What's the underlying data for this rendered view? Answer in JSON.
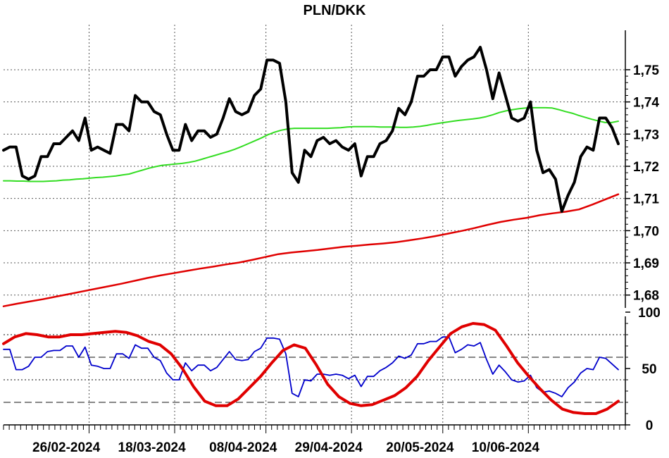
{
  "chart_data": [
    {
      "type": "line",
      "title": "PLN/DKK",
      "ylim": [
        1.676,
        1.764
      ],
      "yticks": [
        1.68,
        1.69,
        1.7,
        1.71,
        1.72,
        1.73,
        1.74,
        1.75
      ],
      "ytick_labels": [
        "1,68",
        "1,69",
        "1,70",
        "1,71",
        "1,72",
        "1,73",
        "1,74",
        "1,75"
      ],
      "grid": true,
      "n_points": 110,
      "series": [
        {
          "key": "price",
          "color": "#000000",
          "values": [
            1.725,
            1.726,
            1.726,
            1.717,
            1.716,
            1.717,
            1.723,
            1.723,
            1.727,
            1.727,
            1.729,
            1.731,
            1.728,
            1.735,
            1.725,
            1.726,
            1.725,
            1.724,
            1.733,
            1.733,
            1.731,
            1.742,
            1.74,
            1.74,
            1.737,
            1.736,
            1.73,
            1.725,
            1.725,
            1.733,
            1.728,
            1.731,
            1.731,
            1.729,
            1.73,
            1.735,
            1.741,
            1.737,
            1.736,
            1.737,
            1.742,
            1.744,
            1.753,
            1.753,
            1.752,
            1.74,
            1.718,
            1.715,
            1.725,
            1.723,
            1.728,
            1.729,
            1.727,
            1.728,
            1.726,
            1.725,
            1.727,
            1.717,
            1.723,
            1.723,
            1.727,
            1.728,
            1.731,
            1.738,
            1.736,
            1.74,
            1.748,
            1.748,
            1.75,
            1.75,
            1.754,
            1.754,
            1.748,
            1.751,
            1.753,
            1.754,
            1.757,
            1.75,
            1.741,
            1.749,
            1.742,
            1.735,
            1.734,
            1.735,
            1.74,
            1.725,
            1.718,
            1.719,
            1.716,
            1.706,
            1.711,
            1.715,
            1.723,
            1.726,
            1.725,
            1.735,
            1.735,
            1.732,
            1.727
          ]
        },
        {
          "key": "ma_medium",
          "color": "#33dd22",
          "values": [
            1.7155,
            1.7155,
            1.7154,
            1.7154,
            1.7153,
            1.7153,
            1.7153,
            1.7154,
            1.7155,
            1.7157,
            1.7158,
            1.716,
            1.7161,
            1.7163,
            1.7165,
            1.7166,
            1.7168,
            1.717,
            1.7173,
            1.7176,
            1.7182,
            1.7188,
            1.7194,
            1.7199,
            1.7203,
            1.7205,
            1.7207,
            1.7209,
            1.7212,
            1.7216,
            1.7222,
            1.7228,
            1.7234,
            1.724,
            1.7246,
            1.7253,
            1.7261,
            1.727,
            1.7279,
            1.7288,
            1.7298,
            1.7306,
            1.7312,
            1.7316,
            1.7318,
            1.7318,
            1.7318,
            1.7318,
            1.7318,
            1.7318,
            1.7319,
            1.732,
            1.7322,
            1.7323,
            1.7323,
            1.7323,
            1.7323,
            1.7322,
            1.7322,
            1.7322,
            1.7321,
            1.7321,
            1.7322,
            1.7324,
            1.7327,
            1.7331,
            1.7334,
            1.7337,
            1.734,
            1.7343,
            1.7345,
            1.7347,
            1.735,
            1.7354,
            1.736,
            1.7367,
            1.7372,
            1.7376,
            1.7379,
            1.7381,
            1.7382,
            1.7382,
            1.7382,
            1.7381,
            1.7376,
            1.737,
            1.7365,
            1.7358,
            1.7352,
            1.7346,
            1.7341,
            1.7336,
            1.7336,
            1.734
          ]
        },
        {
          "key": "ma_long",
          "color": "#e00000",
          "values": [
            1.6765,
            1.6773,
            1.678,
            1.6787,
            1.6795,
            1.6803,
            1.6811,
            1.6819,
            1.6827,
            1.6835,
            1.6844,
            1.6853,
            1.6861,
            1.6868,
            1.6875,
            1.6882,
            1.6888,
            1.6895,
            1.6901,
            1.6909,
            1.6918,
            1.6927,
            1.6932,
            1.6936,
            1.694,
            1.6945,
            1.695,
            1.6953,
            1.6957,
            1.696,
            1.6964,
            1.697,
            1.6976,
            1.6983,
            1.6991,
            1.6999,
            1.7008,
            1.7018,
            1.7027,
            1.7034,
            1.704,
            1.7048,
            1.7054,
            1.7059,
            1.7066,
            1.7081,
            1.7097,
            1.7113
          ]
        }
      ]
    },
    {
      "type": "line",
      "ylim": [
        0,
        100
      ],
      "yticks": [
        0,
        50,
        100
      ],
      "ytick_labels": [
        "0",
        "50",
        "100"
      ],
      "reference_lines": [
        20,
        40,
        60,
        80
      ],
      "series": [
        {
          "key": "oscillator_fast",
          "color": "#0000cc",
          "values": [
            67,
            67,
            49,
            49,
            52,
            60,
            60,
            65,
            66,
            66,
            70,
            70,
            60,
            69,
            53,
            52,
            50,
            50,
            63,
            63,
            59,
            71,
            68,
            68,
            60,
            57,
            46,
            40,
            40,
            55,
            48,
            53,
            53,
            48,
            51,
            58,
            65,
            58,
            57,
            58,
            65,
            68,
            77,
            77,
            76,
            63,
            28,
            25,
            40,
            39,
            45,
            45,
            44,
            45,
            44,
            41,
            44,
            34,
            43,
            43,
            48,
            51,
            55,
            61,
            59,
            62,
            72,
            72,
            74,
            74,
            78,
            78,
            64,
            67,
            71,
            70,
            73,
            58,
            45,
            53,
            47,
            40,
            38,
            39,
            44,
            33,
            29,
            30,
            28,
            25,
            33,
            38,
            46,
            50,
            49,
            60,
            59,
            54,
            49
          ]
        },
        {
          "key": "oscillator_slow",
          "color": "#e00000",
          "values": [
            72,
            78,
            81,
            80,
            78,
            78,
            80,
            80,
            81,
            82,
            83,
            82,
            79,
            74,
            71,
            63,
            50,
            34,
            21,
            17,
            17,
            23,
            33,
            43,
            55,
            66,
            71,
            68,
            53,
            36,
            25,
            19,
            17,
            18,
            22,
            26,
            33,
            43,
            57,
            69,
            81,
            87,
            90,
            89,
            84,
            70,
            55,
            43,
            32,
            22,
            14,
            11,
            10,
            10,
            14,
            21
          ]
        }
      ],
      "x_tick_labels": [
        "26/02-2024",
        "18/03-2024",
        "08/04-2024",
        "29/04-2024",
        "20/05-2024",
        "10/06-2024"
      ]
    }
  ]
}
